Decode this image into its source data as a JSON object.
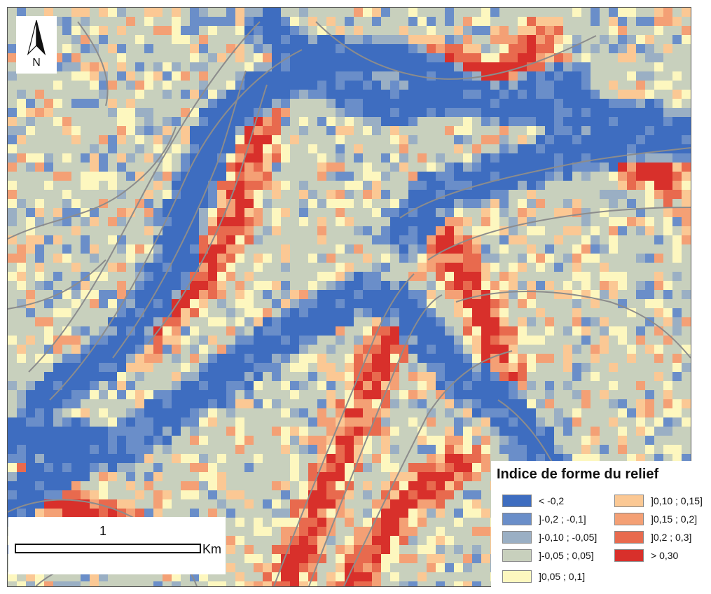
{
  "map": {
    "north_label": "N",
    "scale": {
      "value": "1",
      "unit": "Km"
    }
  },
  "legend": {
    "title": "Indice de forme du relief",
    "items": [
      {
        "label": "< -0,2",
        "color": "#3e6dc0"
      },
      {
        "label": "]-0,2 ; -0,1]",
        "color": "#6a8ec9"
      },
      {
        "label": "]-0,10 ; -0,05]",
        "color": "#9aafc4"
      },
      {
        "label": "]-0,05 ; 0,05]",
        "color": "#c8d0bd"
      },
      {
        "label": "]0,05 ; 0,1]",
        "color": "#fdf7bf"
      },
      {
        "label": "]0,10 ; 0,15]",
        "color": "#fbc894"
      },
      {
        "label": "]0,15 ; 0,2]",
        "color": "#f4a075"
      },
      {
        "label": "]0,2 ; 0,3]",
        "color": "#e86a4e"
      },
      {
        "label": "> 0,30",
        "color": "#d8302b"
      }
    ]
  }
}
